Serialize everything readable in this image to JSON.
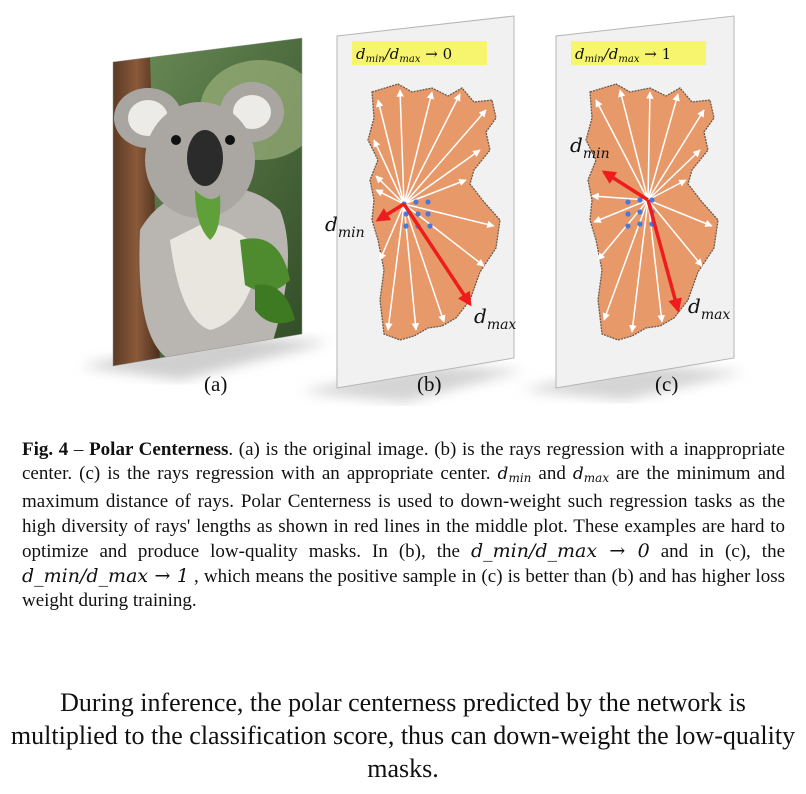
{
  "figure": {
    "panels": [
      {
        "id": "a",
        "label": "(a)",
        "kind": "photo"
      },
      {
        "id": "b",
        "label": "(b)",
        "kind": "rays",
        "badge": "d_min/d_max → 0",
        "dmin_label": "d_min",
        "dmax_label": "d_max"
      },
      {
        "id": "c",
        "label": "(c)",
        "kind": "rays",
        "badge": "d_min/d_max → 1",
        "dmin_label": "d_min",
        "dmax_label": "d_max"
      }
    ],
    "colors": {
      "mask_fill": "#e8996a",
      "mask_stroke": "#5a4a3a",
      "ray": "#ffffff",
      "ray_highlight": "#ee1c1c",
      "badge_bg": "#f7f56d",
      "center_dots": "#4a78d8",
      "card_bg": "#f1f1f1"
    }
  },
  "caption": {
    "fig_label": "Fig. 4",
    "dash": " – ",
    "title": "Polar Centerness",
    "text_1": ". (a) is the original image. (b) is the rays regression with a inappropriate center. (c) is the rays regression with an appropriate center. ",
    "dmin": "d",
    "dmin_sub": "min",
    "and": " and ",
    "dmax": "d",
    "dmax_sub": "max",
    "text_2": " are the minimum and maximum distance of rays. Polar Centerness is used to down-weight such regression tasks as the high diversity of rays' lengths as shown in red lines in the middle plot. These examples are hard to optimize and produce low-quality masks. In (b), the ",
    "ratio_b": "d_min/d_max → 0",
    "text_3": " and in (c), the ",
    "ratio_c": "d_min/d_max → 1",
    "text_4": " , which means the positive sample in (c) is better than (b) and has higher loss weight during training."
  },
  "body": {
    "paragraph": "During inference, the polar centerness predicted by the network is multiplied to the classification score, thus can down-weight the low-quality masks."
  }
}
